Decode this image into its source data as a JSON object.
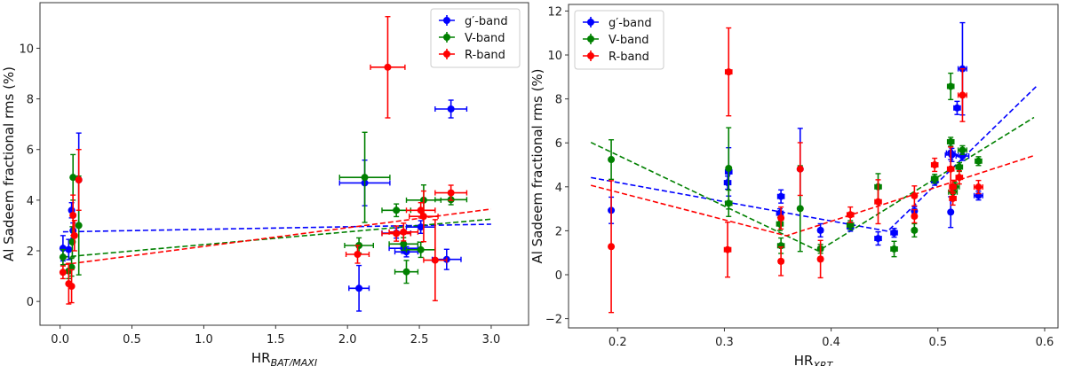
{
  "chart_data": [
    {
      "type": "scatter",
      "xlabel": "HR",
      "xlabel_sub": "BAT/MAXI",
      "ylabel": "Al Sadeem fractional rms (%)",
      "xlim": [
        -0.14,
        3.26
      ],
      "ylim": [
        -0.94,
        11.8
      ],
      "xticks": [
        0.0,
        0.5,
        1.0,
        1.5,
        2.0,
        2.5,
        3.0
      ],
      "yticks": [
        0,
        2,
        4,
        6,
        8,
        10
      ],
      "xtick_labels": [
        "0.0",
        "0.5",
        "1.0",
        "1.5",
        "2.0",
        "2.5",
        "3.0"
      ],
      "ytick_labels": [
        "0",
        "2",
        "4",
        "6",
        "8",
        "10"
      ],
      "grid": false,
      "legend_position": "top-right",
      "series": [
        {
          "name": "g′-band",
          "color": "#0000ff",
          "points": [
            [
              0.02,
              2.1,
              0,
              0.5
            ],
            [
              0.06,
              2.05,
              0,
              0.4
            ],
            [
              0.08,
              3.6,
              0,
              0.3
            ],
            [
              0.09,
              2.8,
              0,
              0.3
            ],
            [
              0.13,
              4.8,
              0,
              1.85
            ],
            [
              2.72,
              7.6,
              0.11,
              0.35
            ],
            [
              2.12,
              4.68,
              0.175,
              0.9
            ],
            [
              2.51,
              2.94,
              0.1,
              0.25
            ],
            [
              2.34,
              2.7,
              0.1,
              0.2
            ],
            [
              2.39,
              2.1,
              0.1,
              0.2
            ],
            [
              2.41,
              1.96,
              0.08,
              0.2
            ],
            [
              2.08,
              0.52,
              0.07,
              0.9
            ],
            [
              2.69,
              1.66,
              0.1,
              0.4
            ]
          ],
          "fit": [
            [
              0.02,
              2.75
            ],
            [
              3.0,
              3.05
            ]
          ]
        },
        {
          "name": "V-band",
          "color": "#008000",
          "points": [
            [
              0.02,
              1.75,
              0,
              0.3
            ],
            [
              0.06,
              1.2,
              0,
              0.3
            ],
            [
              0.08,
              1.35,
              0,
              0.35
            ],
            [
              0.085,
              2.35,
              0,
              0.6
            ],
            [
              0.09,
              4.9,
              0,
              0.9
            ],
            [
              0.13,
              3.0,
              0,
              1.95
            ],
            [
              2.12,
              4.9,
              0.175,
              1.78
            ],
            [
              2.34,
              3.6,
              0.1,
              0.25
            ],
            [
              2.53,
              4.0,
              0.12,
              0.6
            ],
            [
              2.72,
              4.02,
              0.11,
              0.2
            ],
            [
              2.39,
              2.27,
              0.1,
              0.25
            ],
            [
              2.51,
              2.04,
              0.1,
              0.3
            ],
            [
              2.08,
              2.21,
              0.1,
              0.3
            ],
            [
              2.41,
              1.17,
              0.08,
              0.45
            ]
          ],
          "fit": [
            [
              0.02,
              1.75
            ],
            [
              3.0,
              3.25
            ]
          ]
        },
        {
          "name": "R-band",
          "color": "#ff0000",
          "points": [
            [
              0.02,
              1.15,
              0,
              0.25
            ],
            [
              0.06,
              0.7,
              0,
              0.8
            ],
            [
              0.08,
              0.6,
              0,
              0.65
            ],
            [
              0.09,
              3.4,
              0,
              0.8
            ],
            [
              0.1,
              2.6,
              0,
              0.6
            ],
            [
              0.13,
              4.8,
              0,
              1.2
            ],
            [
              2.28,
              9.25,
              0.12,
              2.0
            ],
            [
              2.72,
              4.29,
              0.11,
              0.3
            ],
            [
              2.51,
              3.6,
              0.1,
              0.3
            ],
            [
              2.53,
              3.36,
              0.1,
              1.0
            ],
            [
              2.34,
              2.68,
              0.1,
              0.3
            ],
            [
              2.39,
              2.74,
              0.1,
              0.35
            ],
            [
              2.07,
              1.86,
              0.08,
              0.35
            ],
            [
              2.61,
              1.63,
              0.08,
              1.6
            ]
          ],
          "fit": [
            [
              0.02,
              1.45
            ],
            [
              3.0,
              3.65
            ]
          ]
        }
      ]
    },
    {
      "type": "scatter",
      "xlabel": "HR",
      "xlabel_sub": "XRT",
      "ylabel": "Al Sadeem fractional rms (%)",
      "xlim": [
        0.154,
        0.6125
      ],
      "ylim": [
        -2.42,
        12.3
      ],
      "xticks": [
        0.2,
        0.3,
        0.4,
        0.5,
        0.6
      ],
      "yticks": [
        -2,
        0,
        2,
        4,
        6,
        8,
        10,
        12
      ],
      "xtick_labels": [
        "0.2",
        "0.3",
        "0.4",
        "0.5",
        "0.6"
      ],
      "ytick_labels": [
        "−2",
        "0",
        "2",
        "4",
        "6",
        "8",
        "10",
        "12"
      ],
      "grid": false,
      "legend_position": "top-left",
      "series": [
        {
          "name": "g′-band",
          "color": "#0000ff",
          "points": [
            [
              0.194,
              2.93,
              0,
              0.6
            ],
            [
              0.304,
              4.68,
              0.003,
              1.1
            ],
            [
              0.303,
              4.19,
              0.003,
              0.3
            ],
            [
              0.353,
              3.56,
              0.003,
              0.3
            ],
            [
              0.352,
              2.8,
              0.003,
              0.2
            ],
            [
              0.371,
              4.81,
              0,
              1.85
            ],
            [
              0.39,
              2.02,
              0.002,
              0.3
            ],
            [
              0.418,
              2.18,
              0.003,
              0.2
            ],
            [
              0.444,
              1.65,
              0.003,
              0.3
            ],
            [
              0.459,
              1.91,
              0.003,
              0.2
            ],
            [
              0.478,
              2.9,
              0.002,
              0.2
            ],
            [
              0.497,
              4.27,
              0.003,
              0.2
            ],
            [
              0.512,
              5.54,
              0.004,
              0.3
            ],
            [
              0.513,
              5.45,
              0.006,
              0.3
            ],
            [
              0.512,
              2.85,
              0,
              0.7
            ],
            [
              0.518,
              7.59,
              0.003,
              0.3
            ],
            [
              0.523,
              9.37,
              0.004,
              2.1
            ],
            [
              0.523,
              5.4,
              0.006,
              0.2
            ],
            [
              0.538,
              3.6,
              0.004,
              0.2
            ]
          ],
          "fit": [
            [
              0.175,
              4.42
            ],
            [
              0.453,
              1.98
            ],
            [
              0.592,
              8.56
            ]
          ]
        },
        {
          "name": "V-band",
          "color": "#008000",
          "points": [
            [
              0.194,
              5.24,
              0,
              0.9
            ],
            [
              0.304,
              4.84,
              0,
              1.85
            ],
            [
              0.304,
              3.25,
              0.003,
              0.6
            ],
            [
              0.352,
              2.31,
              0.003,
              0.3
            ],
            [
              0.353,
              1.32,
              0.003,
              0.35
            ],
            [
              0.371,
              3.01,
              0,
              1.95
            ],
            [
              0.39,
              1.18,
              0.002,
              0.2
            ],
            [
              0.418,
              2.26,
              0.003,
              0.2
            ],
            [
              0.444,
              4.0,
              0.003,
              0.6
            ],
            [
              0.459,
              1.17,
              0.003,
              0.35
            ],
            [
              0.478,
              2.02,
              0.002,
              0.3
            ],
            [
              0.497,
              4.37,
              0.003,
              0.2
            ],
            [
              0.512,
              8.57,
              0.003,
              0.6
            ],
            [
              0.512,
              6.05,
              0.003,
              0.2
            ],
            [
              0.514,
              3.76,
              0.004,
              0.2
            ],
            [
              0.516,
              4.0,
              0.004,
              0.2
            ],
            [
              0.52,
              4.9,
              0.003,
              0.2
            ],
            [
              0.523,
              5.67,
              0.004,
              0.2
            ],
            [
              0.538,
              5.17,
              0.003,
              0.2
            ]
          ],
          "fit": [
            [
              0.175,
              6.02
            ],
            [
              0.388,
              1.08
            ],
            [
              0.59,
              7.16
            ]
          ]
        },
        {
          "name": "R-band",
          "color": "#ff0000",
          "points": [
            [
              0.194,
              1.28,
              0,
              3.0
            ],
            [
              0.304,
              9.23,
              0.003,
              2.0
            ],
            [
              0.303,
              1.14,
              0.003,
              1.25
            ],
            [
              0.353,
              2.58,
              0.002,
              0.5
            ],
            [
              0.353,
              0.61,
              0.002,
              0.65
            ],
            [
              0.371,
              4.81,
              0,
              1.2
            ],
            [
              0.39,
              0.71,
              0.002,
              0.85
            ],
            [
              0.418,
              2.73,
              0.003,
              0.35
            ],
            [
              0.444,
              3.32,
              0.003,
              1.0
            ],
            [
              0.478,
              3.59,
              0.002,
              0.45
            ],
            [
              0.478,
              2.66,
              0.002,
              0.3
            ],
            [
              0.497,
              5.0,
              0.003,
              0.3
            ],
            [
              0.512,
              4.81,
              0.003,
              1.0
            ],
            [
              0.514,
              4.0,
              0.003,
              0.3
            ],
            [
              0.514,
              3.47,
              0.003,
              0.3
            ],
            [
              0.52,
              4.43,
              0.003,
              0.3
            ],
            [
              0.523,
              8.17,
              0.004,
              1.2
            ],
            [
              0.538,
              3.99,
              0.004,
              0.3
            ]
          ],
          "fit": [
            [
              0.175,
              4.07
            ],
            [
              0.358,
              1.77
            ],
            [
              0.59,
              5.42
            ]
          ]
        }
      ]
    }
  ]
}
